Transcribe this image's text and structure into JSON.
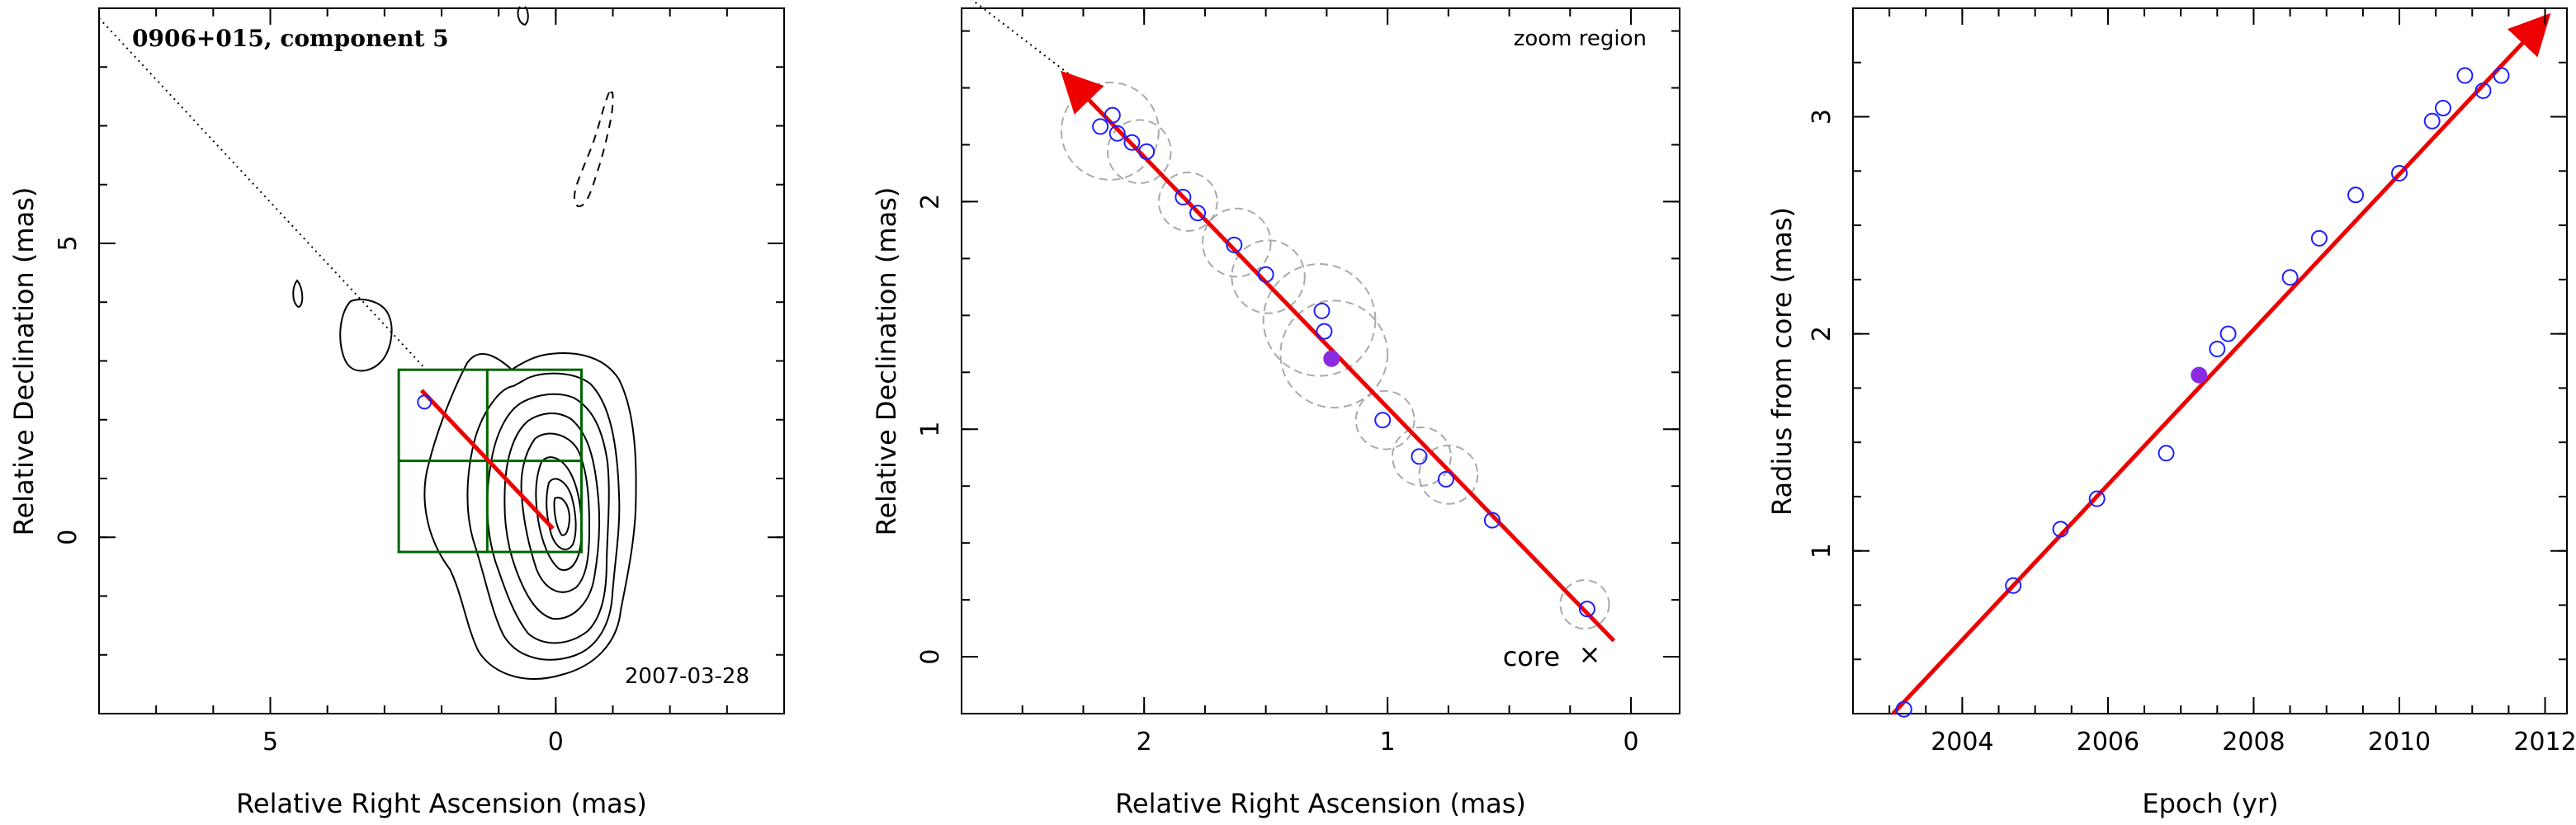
{
  "chart_data": [
    {
      "type": "contour",
      "title": "0906+015, component 5",
      "date": "2007-03-28",
      "xlabel": "Relative Right Ascension (mas)",
      "ylabel": "Relative Declination (mas)",
      "xlim": [
        8,
        -4
      ],
      "ylim": [
        -3,
        9
      ],
      "xticks": [
        5,
        0
      ],
      "yticks": [
        0,
        5
      ],
      "track_points": [
        [
          2.3,
          2.3
        ]
      ],
      "fit_arrow": {
        "from": [
          0.05,
          0.15
        ],
        "to": [
          2.35,
          2.5
        ]
      },
      "zoom_box": {
        "x": [
          -0.45,
          2.75
        ],
        "y": [
          -0.25,
          2.85
        ],
        "x_mid": 1.2,
        "y_mid": 1.3
      },
      "colors": {
        "contour": "#000000",
        "arrow": "#ee0000",
        "box": "#006400",
        "point": "#1f1fff"
      }
    },
    {
      "type": "scatter",
      "label": "zoom region",
      "core_label": "core",
      "xlabel": "Relative Right Ascension (mas)",
      "ylabel": "Relative Declination (mas)",
      "xlim": [
        2.75,
        -0.2
      ],
      "ylim": [
        -0.25,
        2.85
      ],
      "xticks": [
        2,
        1,
        0
      ],
      "yticks": [
        0,
        1,
        2
      ],
      "points": [
        [
          2.18,
          2.33
        ],
        [
          2.13,
          2.38
        ],
        [
          2.11,
          2.3
        ],
        [
          2.05,
          2.26
        ],
        [
          1.99,
          2.22
        ],
        [
          1.84,
          2.02
        ],
        [
          1.78,
          1.95
        ],
        [
          1.63,
          1.81
        ],
        [
          1.5,
          1.68
        ],
        [
          1.27,
          1.52
        ],
        [
          1.26,
          1.43
        ],
        [
          1.02,
          1.04
        ],
        [
          0.87,
          0.88
        ],
        [
          0.76,
          0.78
        ],
        [
          0.57,
          0.6
        ],
        [
          0.18,
          0.21
        ]
      ],
      "highlight_point": [
        1.23,
        1.31
      ],
      "circles": [
        [
          2.14,
          2.31,
          0.2
        ],
        [
          2.02,
          2.22,
          0.13
        ],
        [
          1.82,
          2.0,
          0.12
        ],
        [
          1.62,
          1.82,
          0.14
        ],
        [
          1.49,
          1.67,
          0.15
        ],
        [
          1.28,
          1.48,
          0.23
        ],
        [
          1.22,
          1.33,
          0.22
        ],
        [
          1.01,
          1.04,
          0.12
        ],
        [
          0.86,
          0.88,
          0.12
        ],
        [
          0.75,
          0.8,
          0.12
        ],
        [
          0.19,
          0.23,
          0.1
        ]
      ],
      "fit_arrow": {
        "from": [
          0.07,
          0.07
        ],
        "to": [
          2.32,
          2.55
        ]
      },
      "colors": {
        "point": "#1f1fff",
        "highlight": "#8a2be2",
        "arrow": "#ee0000",
        "circle": "#aaaaaa"
      }
    },
    {
      "type": "scatter",
      "xlabel": "Epoch (yr)",
      "ylabel": "Radius from core (mas)",
      "xlim": [
        2002.5,
        2012.3
      ],
      "ylim": [
        0.25,
        3.5
      ],
      "xticks": [
        2004,
        2006,
        2008,
        2010,
        2012
      ],
      "yticks": [
        1,
        2,
        3
      ],
      "points": [
        [
          2003.2,
          0.27
        ],
        [
          2004.7,
          0.84
        ],
        [
          2005.35,
          1.1
        ],
        [
          2005.85,
          1.24
        ],
        [
          2006.8,
          1.45
        ],
        [
          2007.5,
          1.93
        ],
        [
          2007.65,
          2.0
        ],
        [
          2008.5,
          2.26
        ],
        [
          2008.9,
          2.44
        ],
        [
          2009.4,
          2.64
        ],
        [
          2010.0,
          2.74
        ],
        [
          2010.45,
          2.98
        ],
        [
          2010.6,
          3.04
        ],
        [
          2010.9,
          3.19
        ],
        [
          2011.15,
          3.12
        ],
        [
          2011.4,
          3.19
        ]
      ],
      "highlight_point": [
        2007.25,
        1.81
      ],
      "fit_line": {
        "from": [
          2003.05,
          0.25
        ],
        "to": [
          2012.0,
          3.45
        ]
      },
      "colors": {
        "point": "#1f1fff",
        "highlight": "#8a2be2",
        "arrow": "#ee0000"
      }
    }
  ]
}
